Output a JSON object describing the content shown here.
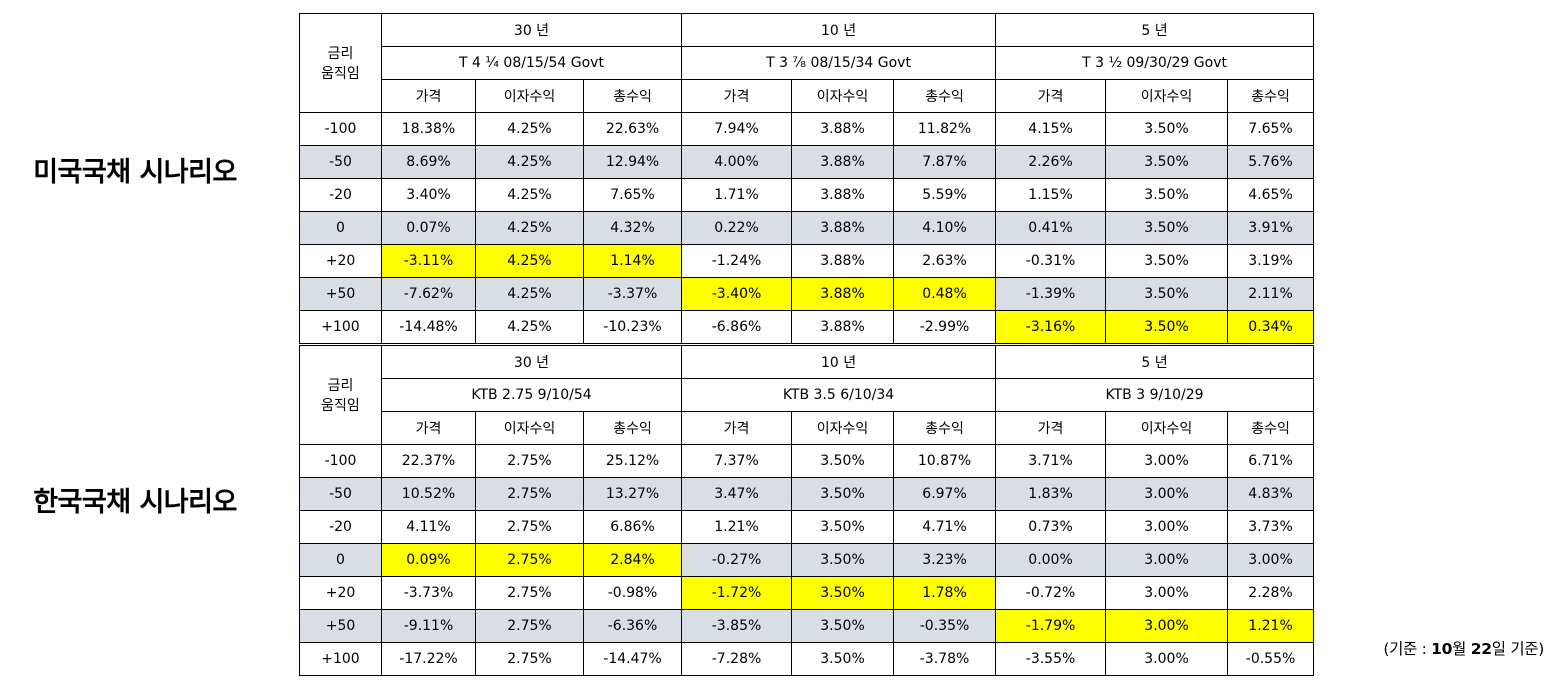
{
  "labels": {
    "us": "미국국채 시나리오",
    "kr": "한국국채 시나리오"
  },
  "header": {
    "movement": "금리\n움직임",
    "cols": [
      "가격",
      "이자수익",
      "총수익"
    ]
  },
  "tables": [
    {
      "groups": [
        {
          "tenor": "30 년",
          "bond": "T 4 ¼ 08/15/54 Govt"
        },
        {
          "tenor": "10 년",
          "bond": "T 3 ⅞ 08/15/34 Govt"
        },
        {
          "tenor": "5 년",
          "bond": "T 3 ½ 09/30/29 Govt"
        }
      ],
      "rows": [
        {
          "move": "-100",
          "cells": [
            "18.38%",
            "4.25%",
            "22.63%",
            "7.94%",
            "3.88%",
            "11.82%",
            "4.15%",
            "3.50%",
            "7.65%"
          ],
          "hl": -1
        },
        {
          "move": "-50",
          "cells": [
            "8.69%",
            "4.25%",
            "12.94%",
            "4.00%",
            "3.88%",
            "7.87%",
            "2.26%",
            "3.50%",
            "5.76%"
          ],
          "hl": -1
        },
        {
          "move": "-20",
          "cells": [
            "3.40%",
            "4.25%",
            "7.65%",
            "1.71%",
            "3.88%",
            "5.59%",
            "1.15%",
            "3.50%",
            "4.65%"
          ],
          "hl": -1
        },
        {
          "move": "0",
          "cells": [
            "0.07%",
            "4.25%",
            "4.32%",
            "0.22%",
            "3.88%",
            "4.10%",
            "0.41%",
            "3.50%",
            "3.91%"
          ],
          "hl": -1
        },
        {
          "move": "+20",
          "cells": [
            "-3.11%",
            "4.25%",
            "1.14%",
            "-1.24%",
            "3.88%",
            "2.63%",
            "-0.31%",
            "3.50%",
            "3.19%"
          ],
          "hl": 0
        },
        {
          "move": "+50",
          "cells": [
            "-7.62%",
            "4.25%",
            "-3.37%",
            "-3.40%",
            "3.88%",
            "0.48%",
            "-1.39%",
            "3.50%",
            "2.11%"
          ],
          "hl": 1
        },
        {
          "move": "+100",
          "cells": [
            "-14.48%",
            "4.25%",
            "-10.23%",
            "-6.86%",
            "3.88%",
            "-2.99%",
            "-3.16%",
            "3.50%",
            "0.34%"
          ],
          "hl": 2
        }
      ]
    },
    {
      "groups": [
        {
          "tenor": "30 년",
          "bond": "KTB 2.75 9/10/54"
        },
        {
          "tenor": "10 년",
          "bond": "KTB 3.5 6/10/34"
        },
        {
          "tenor": "5 년",
          "bond": "KTB 3 9/10/29"
        }
      ],
      "rows": [
        {
          "move": "-100",
          "cells": [
            "22.37%",
            "2.75%",
            "25.12%",
            "7.37%",
            "3.50%",
            "10.87%",
            "3.71%",
            "3.00%",
            "6.71%"
          ],
          "hl": -1
        },
        {
          "move": "-50",
          "cells": [
            "10.52%",
            "2.75%",
            "13.27%",
            "3.47%",
            "3.50%",
            "6.97%",
            "1.83%",
            "3.00%",
            "4.83%"
          ],
          "hl": -1
        },
        {
          "move": "-20",
          "cells": [
            "4.11%",
            "2.75%",
            "6.86%",
            "1.21%",
            "3.50%",
            "4.71%",
            "0.73%",
            "3.00%",
            "3.73%"
          ],
          "hl": -1
        },
        {
          "move": "0",
          "cells": [
            "0.09%",
            "2.75%",
            "2.84%",
            "-0.27%",
            "3.50%",
            "3.23%",
            "0.00%",
            "3.00%",
            "3.00%"
          ],
          "hl": 0
        },
        {
          "move": "+20",
          "cells": [
            "-3.73%",
            "2.75%",
            "-0.98%",
            "-1.72%",
            "3.50%",
            "1.78%",
            "-0.72%",
            "3.00%",
            "2.28%"
          ],
          "hl": 1
        },
        {
          "move": "+50",
          "cells": [
            "-9.11%",
            "2.75%",
            "-6.36%",
            "-3.85%",
            "3.50%",
            "-0.35%",
            "-1.79%",
            "3.00%",
            "1.21%"
          ],
          "hl": 2
        },
        {
          "move": "+100",
          "cells": [
            "-17.22%",
            "2.75%",
            "-14.47%",
            "-7.28%",
            "3.50%",
            "-3.78%",
            "-3.55%",
            "3.00%",
            "-0.55%"
          ],
          "hl": -1
        }
      ]
    }
  ],
  "note": {
    "prefix": "(기준 : ",
    "bold_part": "10",
    "mid": "월 ",
    "bold_part2": "22",
    "suffix": "일 기준)"
  },
  "colors": {
    "shade": "#d9dde4",
    "highlight": "#ffff00"
  }
}
